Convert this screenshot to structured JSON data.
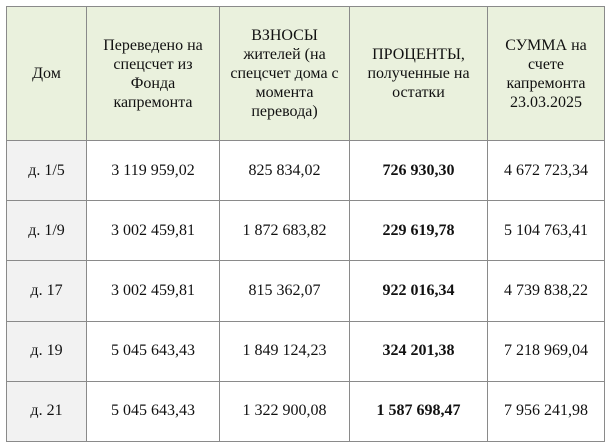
{
  "table": {
    "headers": {
      "house": "Дом",
      "transferred": "Переведено на спецсчет из Фонда капремонта",
      "contributions": "ВЗНОСЫ жителей (на спецсчет дома с момента перевода)",
      "interest": "ПРОЦЕНТЫ, полученные на остатки",
      "total": "СУММА на счете капремонта 23.03.2025"
    },
    "rows": [
      {
        "house": "д. 1/5",
        "transferred": "3 119 959,02",
        "contributions": "825 834,02",
        "interest": "726 930,30",
        "total": "4 672 723,34"
      },
      {
        "house": "д. 1/9",
        "transferred": "3 002 459,81",
        "contributions": "1 872 683,82",
        "interest": "229 619,78",
        "total": "5 104 763,41"
      },
      {
        "house": "д. 17",
        "transferred": "3 002 459,81",
        "contributions": "815 362,07",
        "interest": "922 016,34",
        "total": "4 739 838,22"
      },
      {
        "house": "д. 19",
        "transferred": "5 045 643,43",
        "contributions": "1 849 124,23",
        "interest": "324 201,38",
        "total": "7 218 969,04"
      },
      {
        "house": "д. 21",
        "transferred": "5 045 643,43",
        "contributions": "1 322 900,08",
        "interest": "1 587 698,47",
        "total": "7 956 241,98"
      }
    ]
  },
  "colors": {
    "header_background": "#eaf1dd",
    "first_column_background": "#f2f2f2",
    "border": "#8a8a8a"
  }
}
